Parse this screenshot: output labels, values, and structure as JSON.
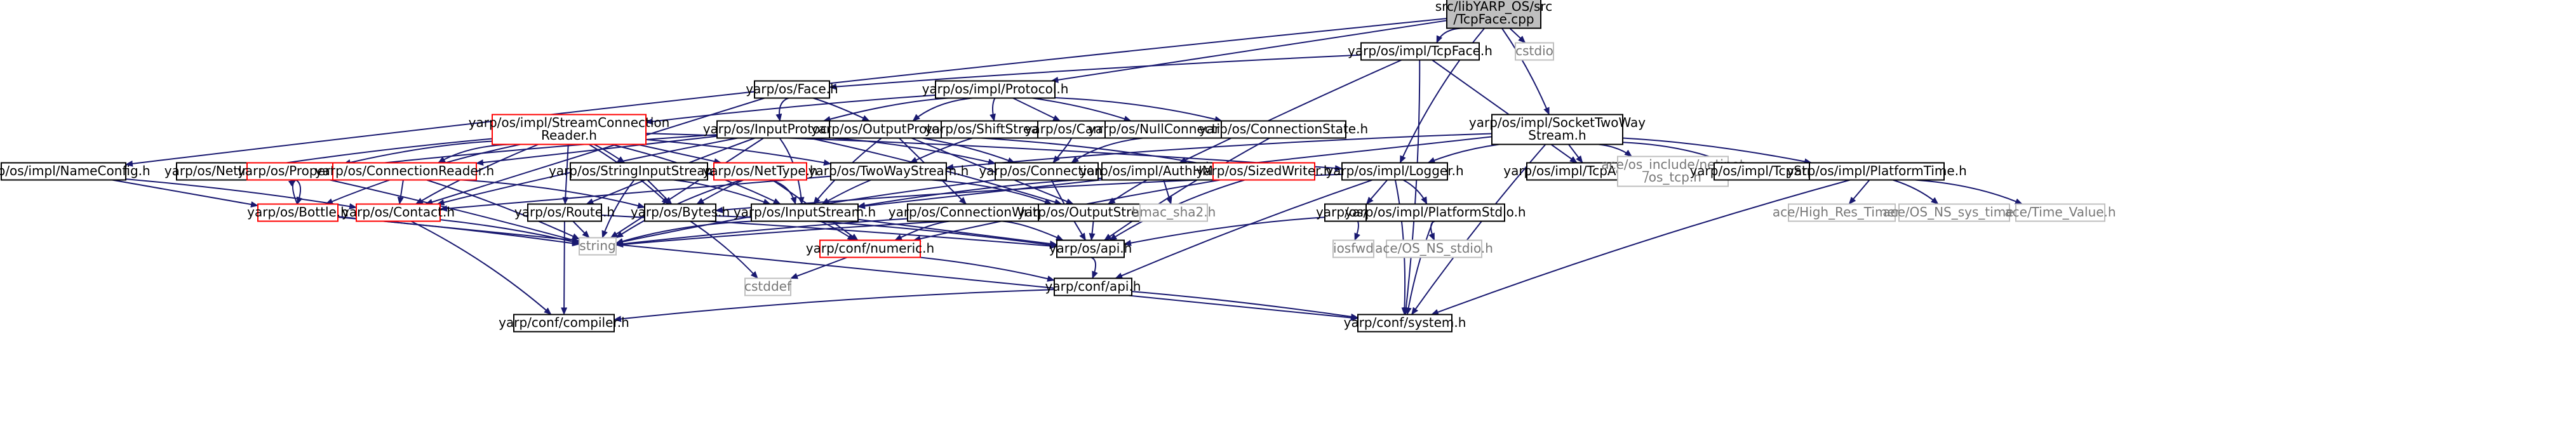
{
  "graph": {
    "title_lines": [
      "src/libYARP_OS/src",
      "/TcpFace.cpp"
    ],
    "colors": {
      "edge": "#191970",
      "node_fill": "#ffffff",
      "node_border": "#000000",
      "root_fill": "#bfbfbf",
      "incomplete_border": "#ff0000",
      "external_border": "#bfbfbf",
      "external_text": "#777777"
    },
    "nodes": [
      {
        "id": "tcpface_cpp",
        "lines": [
          "src/libYARP_OS/src",
          "/TcpFace.cpp"
        ],
        "kind": "root"
      },
      {
        "id": "impl_tcpface_h",
        "lines": [
          "yarp/os/impl/TcpFace.h"
        ],
        "kind": "normal"
      },
      {
        "id": "cstdio",
        "lines": [
          "cstdio"
        ],
        "kind": "external"
      },
      {
        "id": "face_h",
        "lines": [
          "yarp/os/Face.h"
        ],
        "kind": "normal"
      },
      {
        "id": "protocol_h",
        "lines": [
          "yarp/os/impl/Protocol.h"
        ],
        "kind": "normal"
      },
      {
        "id": "socket_twoway_h",
        "lines": [
          "yarp/os/impl/SocketTwoWay",
          "Stream.h"
        ],
        "kind": "normal"
      },
      {
        "id": "stream_conn_reader_h",
        "lines": [
          "yarp/os/impl/StreamConnection",
          "Reader.h"
        ],
        "kind": "incomplete"
      },
      {
        "id": "inputprotocol_h",
        "lines": [
          "yarp/os/InputProtocol.h"
        ],
        "kind": "normal"
      },
      {
        "id": "outputprotocol_h",
        "lines": [
          "yarp/os/OutputProtocol.h"
        ],
        "kind": "normal"
      },
      {
        "id": "shiftstream_h",
        "lines": [
          "yarp/os/ShiftStream.h"
        ],
        "kind": "normal"
      },
      {
        "id": "carrier_h",
        "lines": [
          "yarp/os/Carrier.h"
        ],
        "kind": "normal"
      },
      {
        "id": "nullconnection_h",
        "lines": [
          "yarp/os/NullConnection.h"
        ],
        "kind": "normal"
      },
      {
        "id": "connectionstate_h",
        "lines": [
          "yarp/os/ConnectionState.h"
        ],
        "kind": "normal"
      },
      {
        "id": "nameconfig_h",
        "lines": [
          "yarp/os/impl/NameConfig.h"
        ],
        "kind": "normal"
      },
      {
        "id": "netint8_h",
        "lines": [
          "yarp/os/NetInt8.h"
        ],
        "kind": "normal"
      },
      {
        "id": "property_h",
        "lines": [
          "yarp/os/Property.h"
        ],
        "kind": "incomplete"
      },
      {
        "id": "connectionreader_h",
        "lines": [
          "yarp/os/ConnectionReader.h"
        ],
        "kind": "incomplete"
      },
      {
        "id": "stringinputstream_h",
        "lines": [
          "yarp/os/StringInputStream.h"
        ],
        "kind": "normal"
      },
      {
        "id": "nettype_h",
        "lines": [
          "yarp/os/NetType.h"
        ],
        "kind": "incomplete"
      },
      {
        "id": "twowaystream_h",
        "lines": [
          "yarp/os/TwoWayStream.h"
        ],
        "kind": "normal"
      },
      {
        "id": "connection_h",
        "lines": [
          "yarp/os/Connection.h"
        ],
        "kind": "normal"
      },
      {
        "id": "authhmac_h",
        "lines": [
          "yarp/os/impl/AuthHMAC.h"
        ],
        "kind": "normal"
      },
      {
        "id": "sizedwriter_h",
        "lines": [
          "yarp/os/SizedWriter.h"
        ],
        "kind": "incomplete"
      },
      {
        "id": "logger_h",
        "lines": [
          "yarp/os/impl/Logger.h"
        ],
        "kind": "normal"
      },
      {
        "id": "tcpacceptor_h",
        "lines": [
          "yarp/os/impl/TcpAcceptor.h"
        ],
        "kind": "normal"
      },
      {
        "id": "ace_netinet_tcp",
        "lines": [
          "ace/os_include/netinet",
          "/os_tcp.h"
        ],
        "kind": "external"
      },
      {
        "id": "tcpstream_h",
        "lines": [
          "yarp/os/impl/TcpStream.h"
        ],
        "kind": "normal"
      },
      {
        "id": "platformtime_h",
        "lines": [
          "yarp/os/impl/PlatformTime.h"
        ],
        "kind": "normal"
      },
      {
        "id": "bottle_h",
        "lines": [
          "yarp/os/Bottle.h"
        ],
        "kind": "incomplete"
      },
      {
        "id": "contact_h",
        "lines": [
          "yarp/os/Contact.h"
        ],
        "kind": "incomplete"
      },
      {
        "id": "route_h",
        "lines": [
          "yarp/os/Route.h"
        ],
        "kind": "normal"
      },
      {
        "id": "bytes_h",
        "lines": [
          "yarp/os/Bytes.h"
        ],
        "kind": "normal"
      },
      {
        "id": "inputstream_h",
        "lines": [
          "yarp/os/InputStream.h"
        ],
        "kind": "normal"
      },
      {
        "id": "connectionwriter_h",
        "lines": [
          "yarp/os/ConnectionWriter.h"
        ],
        "kind": "normal"
      },
      {
        "id": "outputstream_h",
        "lines": [
          "yarp/os/OutputStream.h"
        ],
        "kind": "normal"
      },
      {
        "id": "hmac_sha2_h",
        "lines": [
          "hmac_sha2.h"
        ],
        "kind": "external"
      },
      {
        "id": "log_h",
        "lines": [
          "yarp/os/Log.h"
        ],
        "kind": "normal"
      },
      {
        "id": "platformstdio_h",
        "lines": [
          "yarp/os/impl/PlatformStdio.h"
        ],
        "kind": "normal"
      },
      {
        "id": "ace_high_res_timer",
        "lines": [
          "ace/High_Res_Timer.h"
        ],
        "kind": "external"
      },
      {
        "id": "ace_os_ns_sys_time",
        "lines": [
          "ace/OS_NS_sys_time.h"
        ],
        "kind": "external"
      },
      {
        "id": "ace_time_value",
        "lines": [
          "ace/Time_Value.h"
        ],
        "kind": "external"
      },
      {
        "id": "string",
        "lines": [
          "string"
        ],
        "kind": "external"
      },
      {
        "id": "numeric_h",
        "lines": [
          "yarp/conf/numeric.h"
        ],
        "kind": "incomplete"
      },
      {
        "id": "api_os_h",
        "lines": [
          "yarp/os/api.h"
        ],
        "kind": "normal"
      },
      {
        "id": "iosfwd",
        "lines": [
          "iosfwd"
        ],
        "kind": "external"
      },
      {
        "id": "ace_os_ns_stdio",
        "lines": [
          "ace/OS_NS_stdio.h"
        ],
        "kind": "external"
      },
      {
        "id": "cstddef",
        "lines": [
          "cstddef"
        ],
        "kind": "external"
      },
      {
        "id": "conf_api_h",
        "lines": [
          "yarp/conf/api.h"
        ],
        "kind": "normal"
      },
      {
        "id": "compiler_h",
        "lines": [
          "yarp/conf/compiler.h"
        ],
        "kind": "normal"
      },
      {
        "id": "system_h",
        "lines": [
          "yarp/conf/system.h"
        ],
        "kind": "normal"
      }
    ],
    "edges": [
      [
        "tcpface_cpp",
        "impl_tcpface_h"
      ],
      [
        "tcpface_cpp",
        "cstdio"
      ],
      [
        "tcpface_cpp",
        "protocol_h"
      ],
      [
        "tcpface_cpp",
        "socket_twoway_h"
      ],
      [
        "tcpface_cpp",
        "nameconfig_h"
      ],
      [
        "tcpface_cpp",
        "logger_h"
      ],
      [
        "impl_tcpface_h",
        "face_h"
      ],
      [
        "impl_tcpface_h",
        "tcpacceptor_h"
      ],
      [
        "impl_tcpface_h",
        "authhmac_h"
      ],
      [
        "impl_tcpface_h",
        "system_h"
      ],
      [
        "face_h",
        "inputprotocol_h"
      ],
      [
        "face_h",
        "outputprotocol_h"
      ],
      [
        "face_h",
        "contact_h"
      ],
      [
        "protocol_h",
        "stream_conn_reader_h"
      ],
      [
        "protocol_h",
        "inputprotocol_h"
      ],
      [
        "protocol_h",
        "outputprotocol_h"
      ],
      [
        "protocol_h",
        "shiftstream_h"
      ],
      [
        "protocol_h",
        "carrier_h"
      ],
      [
        "protocol_h",
        "nullconnection_h"
      ],
      [
        "protocol_h",
        "connectionstate_h"
      ],
      [
        "socket_twoway_h",
        "twowaystream_h"
      ],
      [
        "socket_twoway_h",
        "logger_h"
      ],
      [
        "socket_twoway_h",
        "tcpacceptor_h"
      ],
      [
        "socket_twoway_h",
        "ace_netinet_tcp"
      ],
      [
        "socket_twoway_h",
        "tcpstream_h"
      ],
      [
        "socket_twoway_h",
        "platformtime_h"
      ],
      [
        "socket_twoway_h",
        "system_h"
      ],
      [
        "socket_twoway_h",
        "inputstream_h"
      ],
      [
        "stream_conn_reader_h",
        "netint8_h"
      ],
      [
        "stream_conn_reader_h",
        "property_h"
      ],
      [
        "stream_conn_reader_h",
        "connectionreader_h"
      ],
      [
        "stream_conn_reader_h",
        "stringinputstream_h"
      ],
      [
        "stream_conn_reader_h",
        "nettype_h"
      ],
      [
        "stream_conn_reader_h",
        "twowaystream_h"
      ],
      [
        "stream_conn_reader_h",
        "logger_h"
      ],
      [
        "stream_conn_reader_h",
        "bottle_h"
      ],
      [
        "stream_conn_reader_h",
        "contact_h"
      ],
      [
        "stream_conn_reader_h",
        "route_h"
      ],
      [
        "stream_conn_reader_h",
        "bytes_h"
      ],
      [
        "stream_conn_reader_h",
        "inputstream_h"
      ],
      [
        "inputprotocol_h",
        "connection_h"
      ],
      [
        "inputprotocol_h",
        "property_h"
      ],
      [
        "inputprotocol_h",
        "connectionreader_h"
      ],
      [
        "inputprotocol_h",
        "route_h"
      ],
      [
        "inputprotocol_h",
        "inputstream_h"
      ],
      [
        "inputprotocol_h",
        "outputstream_h"
      ],
      [
        "inputprotocol_h",
        "contact_h"
      ],
      [
        "inputprotocol_h",
        "string"
      ],
      [
        "outputprotocol_h",
        "connection_h"
      ],
      [
        "outputprotocol_h",
        "sizedwriter_h"
      ],
      [
        "outputprotocol_h",
        "connectionwriter_h"
      ],
      [
        "outputprotocol_h",
        "inputstream_h"
      ],
      [
        "outputprotocol_h",
        "outputstream_h"
      ],
      [
        "shiftstream_h",
        "twowaystream_h"
      ],
      [
        "carrier_h",
        "connection_h"
      ],
      [
        "nullconnection_h",
        "connection_h"
      ],
      [
        "connectionstate_h",
        "api_os_h"
      ],
      [
        "nameconfig_h",
        "bottle_h"
      ],
      [
        "nameconfig_h",
        "contact_h"
      ],
      [
        "property_h",
        "bottle_h"
      ],
      [
        "bottle_h",
        "property_h"
      ],
      [
        "property_h",
        "string"
      ],
      [
        "connectionreader_h",
        "contact_h"
      ],
      [
        "connectionreader_h",
        "string"
      ],
      [
        "connectionreader_h",
        "bytes_h"
      ],
      [
        "stringinputstream_h",
        "inputstream_h"
      ],
      [
        "stringinputstream_h",
        "string"
      ],
      [
        "stringinputstream_h",
        "bytes_h"
      ],
      [
        "nettype_h",
        "bytes_h"
      ],
      [
        "nettype_h",
        "inputstream_h"
      ],
      [
        "nettype_h",
        "string"
      ],
      [
        "nettype_h",
        "numeric_h"
      ],
      [
        "twowaystream_h",
        "contact_h"
      ],
      [
        "twowaystream_h",
        "inputstream_h"
      ],
      [
        "twowaystream_h",
        "outputstream_h"
      ],
      [
        "connection_h",
        "string"
      ],
      [
        "connection_h",
        "api_os_h"
      ],
      [
        "authhmac_h",
        "hmac_sha2_h"
      ],
      [
        "authhmac_h",
        "outputstream_h"
      ],
      [
        "authhmac_h",
        "inputstream_h"
      ],
      [
        "sizedwriter_h",
        "api_os_h"
      ],
      [
        "sizedwriter_h",
        "numeric_h"
      ],
      [
        "logger_h",
        "log_h"
      ],
      [
        "logger_h",
        "platformstdio_h"
      ],
      [
        "logger_h",
        "system_h"
      ],
      [
        "logger_h",
        "bytes_h"
      ],
      [
        "logger_h",
        "conf_api_h"
      ],
      [
        "platformtime_h",
        "ace_high_res_timer"
      ],
      [
        "platformtime_h",
        "ace_os_ns_sys_time"
      ],
      [
        "platformtime_h",
        "ace_time_value"
      ],
      [
        "platformtime_h",
        "system_h"
      ],
      [
        "bottle_h",
        "string"
      ],
      [
        "bottle_h",
        "system_h"
      ],
      [
        "contact_h",
        "string"
      ],
      [
        "contact_h",
        "compiler_h"
      ],
      [
        "route_h",
        "string"
      ],
      [
        "route_h",
        "api_os_h"
      ],
      [
        "route_h",
        "compiler_h"
      ],
      [
        "bytes_h",
        "cstddef"
      ],
      [
        "bytes_h",
        "api_os_h"
      ],
      [
        "inputstream_h",
        "string"
      ],
      [
        "inputstream_h",
        "numeric_h"
      ],
      [
        "inputstream_h",
        "api_os_h"
      ],
      [
        "connectionwriter_h",
        "string"
      ],
      [
        "connectionwriter_h",
        "numeric_h"
      ],
      [
        "connectionwriter_h",
        "api_os_h"
      ],
      [
        "outputstream_h",
        "string"
      ],
      [
        "outputstream_h",
        "api_os_h"
      ],
      [
        "log_h",
        "iosfwd"
      ],
      [
        "log_h",
        "api_os_h"
      ],
      [
        "platformstdio_h",
        "ace_os_ns_stdio"
      ],
      [
        "platformstdio_h",
        "system_h"
      ],
      [
        "numeric_h",
        "cstddef"
      ],
      [
        "numeric_h",
        "conf_api_h"
      ],
      [
        "api_os_h",
        "conf_api_h"
      ],
      [
        "conf_api_h",
        "compiler_h"
      ],
      [
        "conf_api_h",
        "system_h"
      ]
    ]
  }
}
